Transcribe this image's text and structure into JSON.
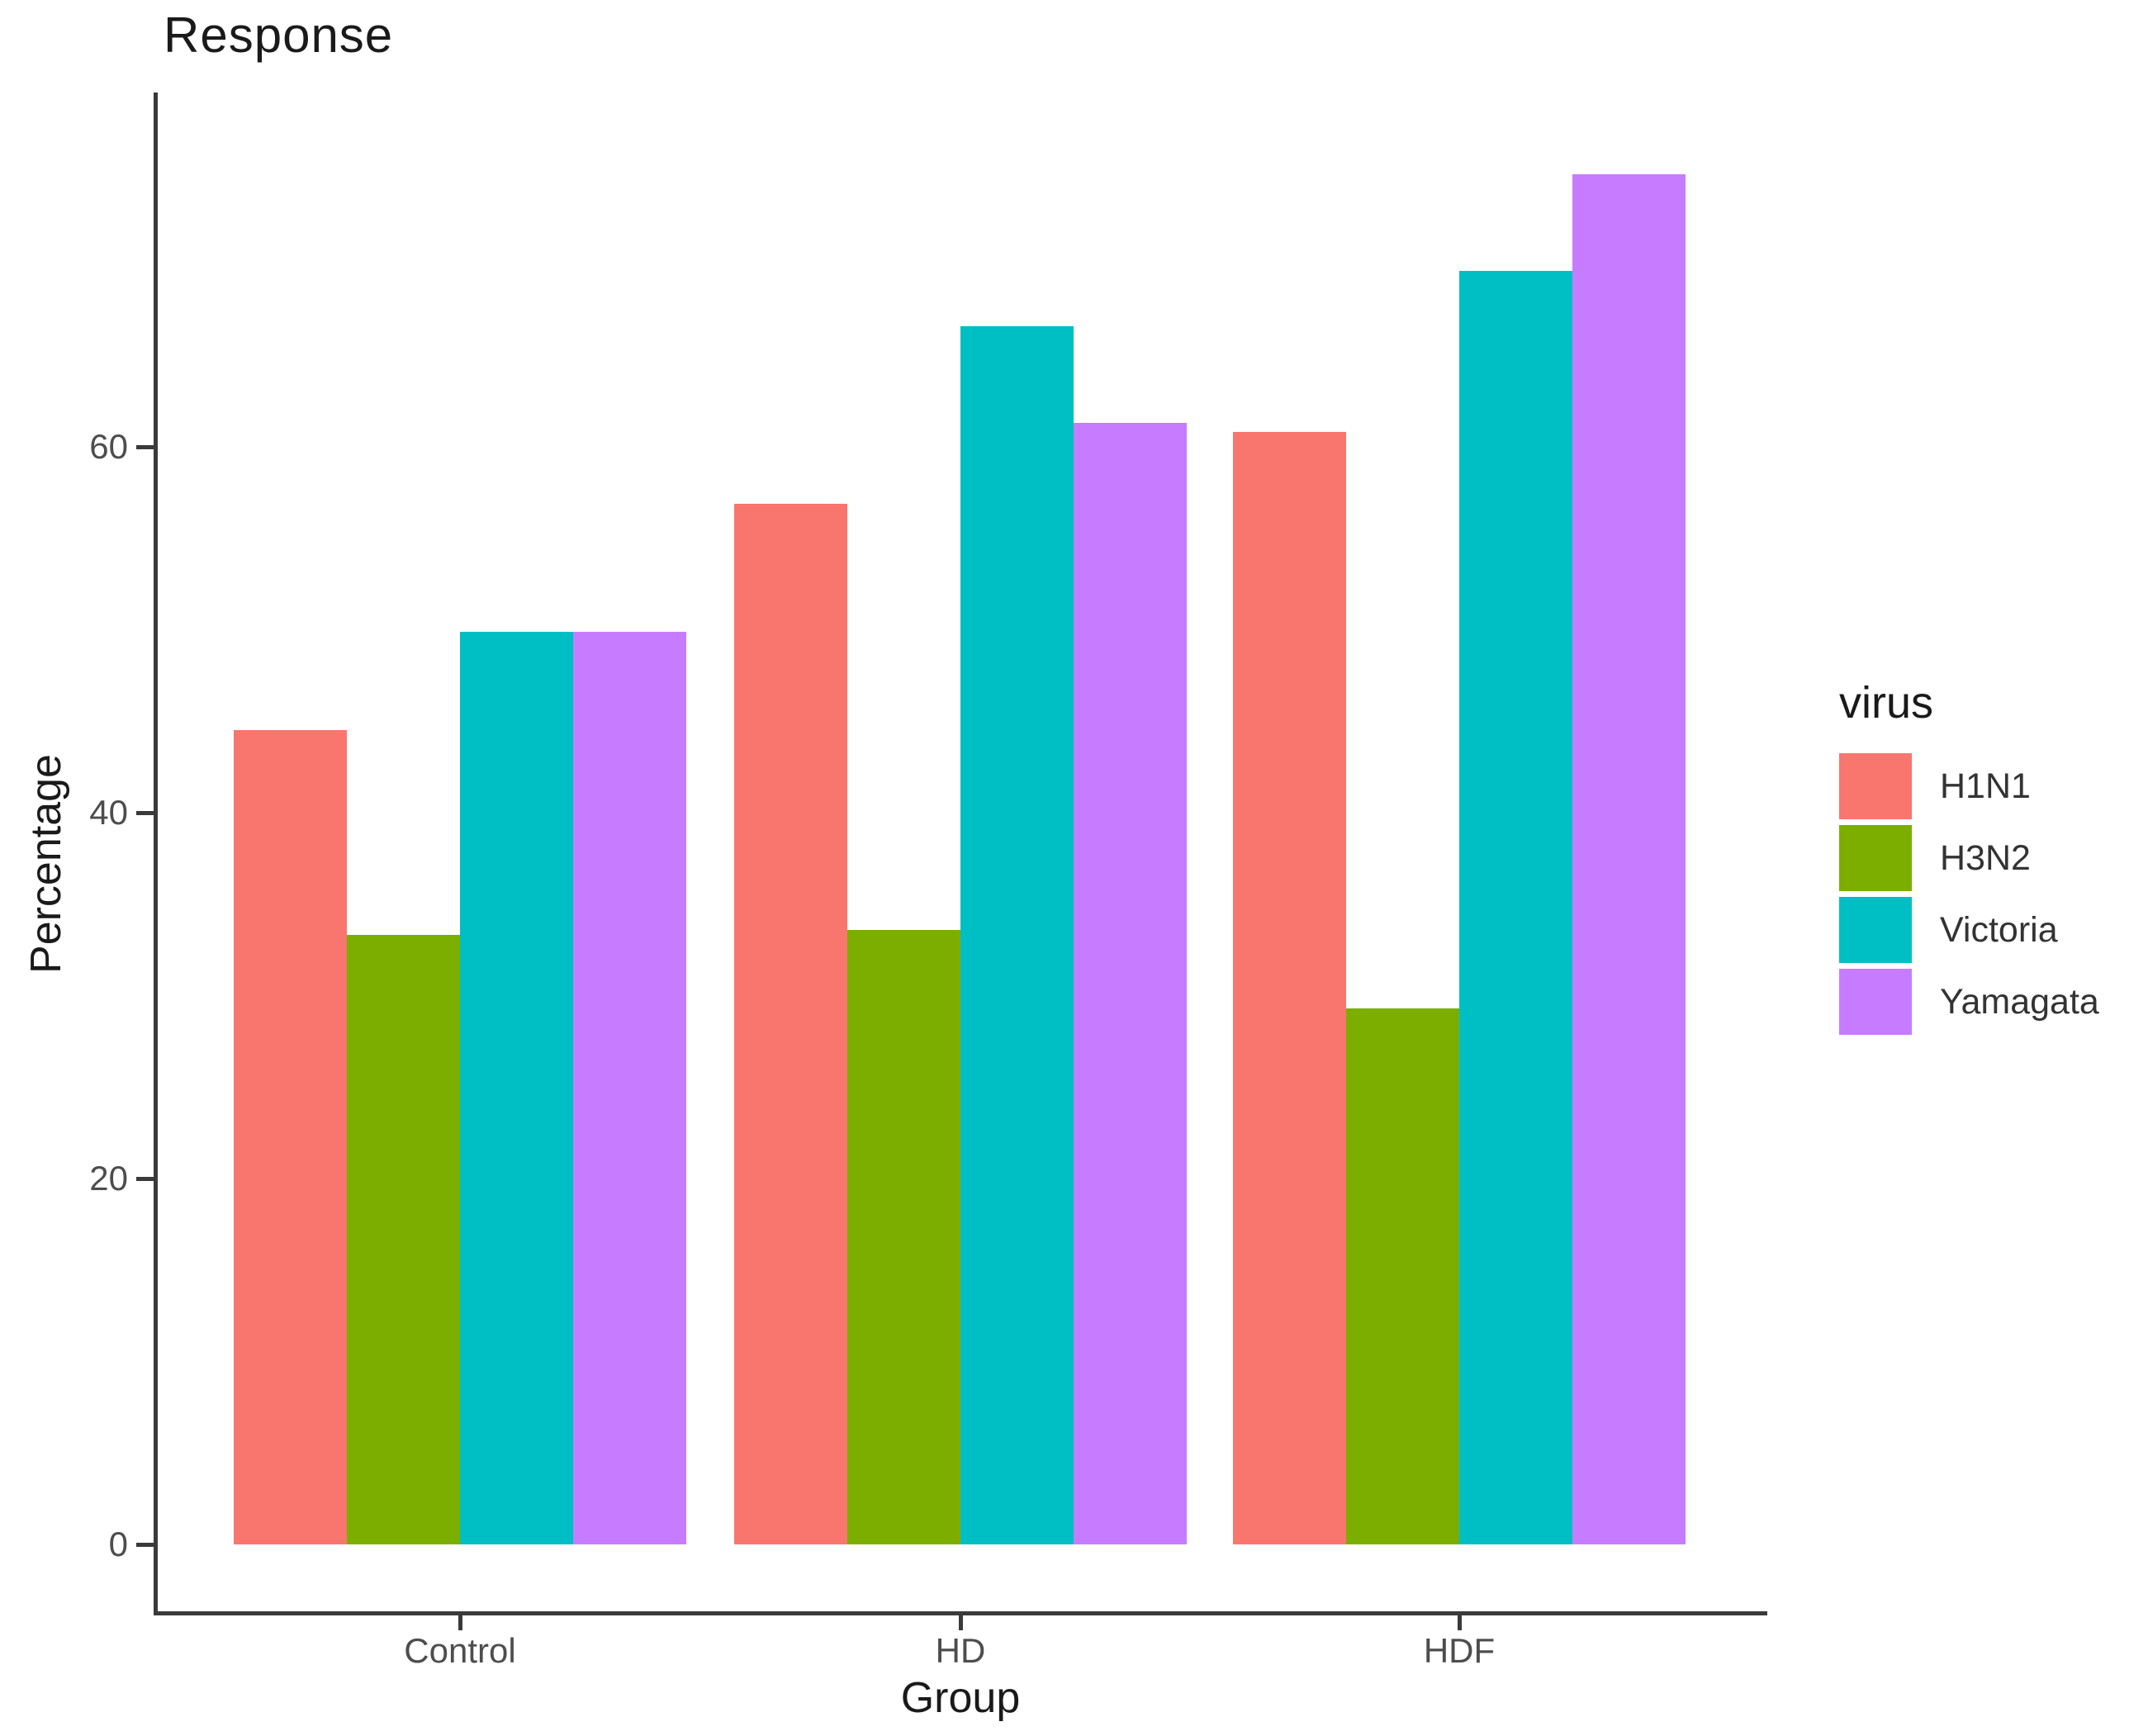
{
  "title": "Response",
  "chart_data": {
    "type": "bar",
    "title": "Response",
    "xlabel": "Group",
    "ylabel": "Percentage",
    "categories": [
      "Control",
      "HD",
      "HDF"
    ],
    "series": [
      {
        "name": "H1N1",
        "color": "#F8766D",
        "values": [
          44.5,
          56.9,
          60.8
        ]
      },
      {
        "name": "H3N2",
        "color": "#7CAE00",
        "values": [
          33.3,
          33.6,
          29.3
        ]
      },
      {
        "name": "Victoria",
        "color": "#00BFC4",
        "values": [
          49.9,
          66.6,
          69.6
        ]
      },
      {
        "name": "Yamagata",
        "color": "#C77CFF",
        "values": [
          49.9,
          61.3,
          74.9
        ]
      }
    ],
    "yticks": [
      0,
      20,
      40,
      60
    ],
    "ylim": [
      0,
      79
    ],
    "grid": false,
    "legend_title": "virus",
    "legend_position": "right",
    "style": "ggplot2-classic, white background, grouped (dodged) bars"
  },
  "legend": {
    "title": "virus",
    "items": [
      "H1N1",
      "H3N2",
      "Victoria",
      "Yamagata"
    ]
  },
  "colors": {
    "axis_line": "#3a3a3a",
    "tick_label": "#4d4d4d",
    "title_text": "#1a1a1a"
  }
}
